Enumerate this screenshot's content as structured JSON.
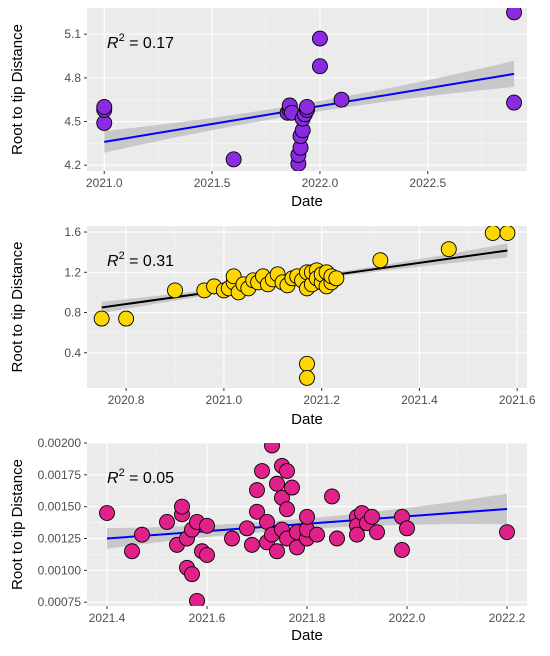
{
  "figure": {
    "colors": {
      "panel_bg": "#ebebeb",
      "grid_major": "#ffffff",
      "grid_minor": "#f5f5f5",
      "tick_text": "#4d4d4d",
      "axis_title": "#000000",
      "ci_band": "#bcbcbc",
      "point_outline": "#000000"
    }
  },
  "chart_data": [
    {
      "type": "scatter",
      "xlabel": "Date",
      "ylabel": "Root to tip Distance",
      "annotation": {
        "prefix": "R",
        "sup": "2",
        "suffix": " = 0.17"
      },
      "xlim": [
        2020.92,
        2022.96
      ],
      "ylim": [
        4.16,
        5.28
      ],
      "x_ticks": [
        2021.0,
        2021.5,
        2022.0,
        2022.5
      ],
      "x_tick_labels": [
        "2021.0",
        "2021.5",
        "2022.0",
        "2022.5"
      ],
      "y_ticks": [
        4.2,
        4.5,
        4.8,
        5.1
      ],
      "y_tick_labels": [
        "4.2",
        "4.5",
        "4.8",
        "5.1"
      ],
      "grid": true,
      "point_color": "#8a2be2",
      "line_color": "#0000ff",
      "fit": {
        "slope": 0.246,
        "intercept_at": [
          2021.0,
          4.36
        ]
      },
      "ci_halfwidth": {
        "min": 0.035,
        "edge": 0.09
      },
      "points": [
        [
          2021.0,
          4.49
        ],
        [
          2021.0,
          4.58
        ],
        [
          2021.0,
          4.6
        ],
        [
          2021.6,
          4.24
        ],
        [
          2021.85,
          4.56
        ],
        [
          2021.86,
          4.58
        ],
        [
          2021.86,
          4.61
        ],
        [
          2021.87,
          4.56
        ],
        [
          2021.9,
          4.21
        ],
        [
          2021.9,
          4.27
        ],
        [
          2021.91,
          4.32
        ],
        [
          2021.91,
          4.4
        ],
        [
          2021.92,
          4.44
        ],
        [
          2021.92,
          4.52
        ],
        [
          2021.93,
          4.55
        ],
        [
          2021.94,
          4.58
        ],
        [
          2021.94,
          4.6
        ],
        [
          2022.0,
          4.88
        ],
        [
          2022.0,
          5.07
        ],
        [
          2022.1,
          4.65
        ],
        [
          2022.9,
          4.63
        ],
        [
          2022.9,
          5.25
        ]
      ]
    },
    {
      "type": "scatter",
      "xlabel": "Date",
      "ylabel": "Root to tip Distance",
      "annotation": {
        "prefix": "R",
        "sup": "2",
        "suffix": " = 0.31"
      },
      "xlim": [
        2020.72,
        2021.62
      ],
      "ylim": [
        0.05,
        1.66
      ],
      "x_ticks": [
        2020.8,
        2021.0,
        2021.2,
        2021.4,
        2021.6
      ],
      "x_tick_labels": [
        "2020.8",
        "2021.0",
        "2021.2",
        "2021.4",
        "2021.6"
      ],
      "y_ticks": [
        0.4,
        0.8,
        1.2,
        1.6
      ],
      "y_tick_labels": [
        "0.4",
        "0.8",
        "1.2",
        "1.6"
      ],
      "grid": true,
      "point_color": "#ffd700",
      "line_color": "#000000",
      "fit": {
        "slope": 0.683,
        "intercept_at": [
          2020.75,
          0.85
        ]
      },
      "ci_halfwidth": {
        "min": 0.02,
        "edge": 0.07
      },
      "points": [
        [
          2020.75,
          0.74
        ],
        [
          2020.8,
          0.74
        ],
        [
          2020.9,
          1.02
        ],
        [
          2020.96,
          1.02
        ],
        [
          2020.98,
          1.06
        ],
        [
          2021.0,
          1.02
        ],
        [
          2021.01,
          1.04
        ],
        [
          2021.02,
          1.1
        ],
        [
          2021.02,
          1.16
        ],
        [
          2021.03,
          1.0
        ],
        [
          2021.04,
          1.08
        ],
        [
          2021.05,
          1.04
        ],
        [
          2021.06,
          1.12
        ],
        [
          2021.07,
          1.1
        ],
        [
          2021.08,
          1.16
        ],
        [
          2021.09,
          1.08
        ],
        [
          2021.1,
          1.13
        ],
        [
          2021.11,
          1.18
        ],
        [
          2021.12,
          1.1
        ],
        [
          2021.13,
          1.07
        ],
        [
          2021.14,
          1.14
        ],
        [
          2021.15,
          1.16
        ],
        [
          2021.16,
          1.12
        ],
        [
          2021.17,
          1.2
        ],
        [
          2021.17,
          1.04
        ],
        [
          2021.18,
          1.08
        ],
        [
          2021.18,
          1.2
        ],
        [
          2021.19,
          1.22
        ],
        [
          2021.19,
          1.14
        ],
        [
          2021.2,
          1.1
        ],
        [
          2021.2,
          1.18
        ],
        [
          2021.21,
          1.06
        ],
        [
          2021.21,
          1.2
        ],
        [
          2021.22,
          1.1
        ],
        [
          2021.22,
          1.16
        ],
        [
          2021.23,
          1.14
        ],
        [
          2021.17,
          0.29
        ],
        [
          2021.17,
          0.15
        ],
        [
          2021.32,
          1.32
        ],
        [
          2021.46,
          1.43
        ],
        [
          2021.55,
          1.59
        ],
        [
          2021.58,
          1.59
        ]
      ]
    },
    {
      "type": "scatter",
      "xlabel": "Date",
      "ylabel": "Root to tip Distance",
      "annotation": {
        "prefix": "R",
        "sup": "2",
        "suffix": " = 0.05"
      },
      "xlim": [
        2021.36,
        2022.24
      ],
      "ylim": [
        0.00072,
        0.002
      ],
      "x_ticks": [
        2021.4,
        2021.6,
        2021.8,
        2022.0,
        2022.2
      ],
      "x_tick_labels": [
        "2021.4",
        "2021.6",
        "2021.8",
        "2022.0",
        "2022.2"
      ],
      "y_ticks": [
        0.00075,
        0.001,
        0.00125,
        0.0015,
        0.00175,
        0.002
      ],
      "y_tick_labels": [
        "0.00075",
        "0.00100",
        "0.00125",
        "0.00150",
        "0.00175",
        "0.00200"
      ],
      "grid": true,
      "point_color": "#e0218a",
      "line_color": "#0000ff",
      "fit": {
        "slope": 0.00029,
        "intercept_at": [
          2021.4,
          0.00125
        ]
      },
      "ci_halfwidth": {
        "min": 4e-05,
        "edge": 0.00012
      },
      "points": [
        [
          2021.4,
          0.00145
        ],
        [
          2021.45,
          0.00115
        ],
        [
          2021.47,
          0.00128
        ],
        [
          2021.52,
          0.00138
        ],
        [
          2021.54,
          0.0012
        ],
        [
          2021.55,
          0.00144
        ],
        [
          2021.55,
          0.0015
        ],
        [
          2021.56,
          0.00102
        ],
        [
          2021.56,
          0.00125
        ],
        [
          2021.57,
          0.00132
        ],
        [
          2021.57,
          0.00097
        ],
        [
          2021.58,
          0.00138
        ],
        [
          2021.58,
          0.00076
        ],
        [
          2021.59,
          0.00115
        ],
        [
          2021.6,
          0.00112
        ],
        [
          2021.6,
          0.00135
        ],
        [
          2021.65,
          0.00125
        ],
        [
          2021.68,
          0.00133
        ],
        [
          2021.69,
          0.0012
        ],
        [
          2021.7,
          0.00146
        ],
        [
          2021.7,
          0.00163
        ],
        [
          2021.71,
          0.00178
        ],
        [
          2021.72,
          0.00138
        ],
        [
          2021.72,
          0.00122
        ],
        [
          2021.73,
          0.00198
        ],
        [
          2021.73,
          0.00128
        ],
        [
          2021.74,
          0.00168
        ],
        [
          2021.74,
          0.00115
        ],
        [
          2021.75,
          0.00182
        ],
        [
          2021.75,
          0.00157
        ],
        [
          2021.75,
          0.00132
        ],
        [
          2021.76,
          0.00148
        ],
        [
          2021.76,
          0.00125
        ],
        [
          2021.76,
          0.00178
        ],
        [
          2021.77,
          0.00165
        ],
        [
          2021.78,
          0.0013
        ],
        [
          2021.78,
          0.00118
        ],
        [
          2021.8,
          0.00125
        ],
        [
          2021.8,
          0.00132
        ],
        [
          2021.8,
          0.00142
        ],
        [
          2021.82,
          0.00128
        ],
        [
          2021.85,
          0.00158
        ],
        [
          2021.86,
          0.00125
        ],
        [
          2021.9,
          0.00142
        ],
        [
          2021.9,
          0.00135
        ],
        [
          2021.9,
          0.00128
        ],
        [
          2021.91,
          0.00145
        ],
        [
          2021.92,
          0.00137
        ],
        [
          2021.93,
          0.00142
        ],
        [
          2021.94,
          0.0013
        ],
        [
          2021.99,
          0.00142
        ],
        [
          2021.99,
          0.00116
        ],
        [
          2022.0,
          0.00133
        ],
        [
          2022.2,
          0.0013
        ]
      ]
    }
  ]
}
